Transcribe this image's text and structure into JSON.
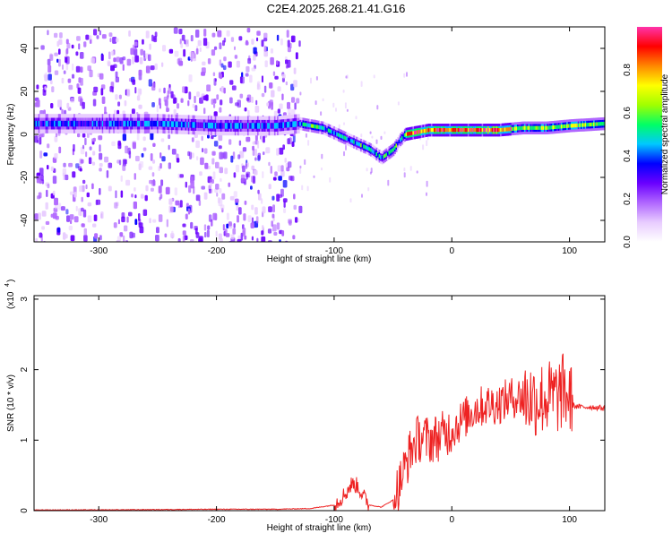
{
  "figure_title": "C2E4.2025.268.21.41.G16",
  "colors": {
    "snr_line": "#ee2222",
    "colormap": [
      "#ffffff",
      "#e8ccff",
      "#b066ff",
      "#6a00ff",
      "#0000ff",
      "#00c8ff",
      "#00ff66",
      "#a0ff00",
      "#ffff00",
      "#ff8800",
      "#ff0000",
      "#ff33aa"
    ]
  },
  "chart_data": [
    {
      "type": "heatmap",
      "title": "",
      "xlabel": "Height of straight line (km)",
      "ylabel": "Frequency (Hz)",
      "xlim": [
        -355,
        130
      ],
      "ylim": [
        -50,
        50
      ],
      "xticks": [
        "-300",
        "-200",
        "-100",
        "0",
        "100"
      ],
      "yticks": [
        "-40",
        "-20",
        "0",
        "20",
        "40"
      ],
      "colorbar": {
        "label": "Normalized spectral amplitude",
        "range": [
          0,
          1
        ],
        "ticks": [
          "0.0",
          "0.2",
          "0.4",
          "0.6",
          "0.8"
        ]
      },
      "ridge": {
        "height_km": [
          -355,
          -300,
          -250,
          -200,
          -150,
          -130,
          -110,
          -90,
          -70,
          -60,
          -50,
          -45,
          -40,
          -30,
          -20,
          0,
          20,
          40,
          60,
          80,
          100,
          130
        ],
        "frequency_hz": [
          5,
          5,
          5,
          4,
          4,
          5,
          3,
          -2,
          -7,
          -11,
          -7,
          -3,
          0,
          1,
          2,
          2,
          2,
          2,
          3,
          3,
          4,
          5
        ]
      }
    },
    {
      "type": "line",
      "title": "",
      "xlabel": "Height of straight line (km)",
      "ylabel": "SNR (10 * v/v)",
      "y_multiplier": "(x10",
      "y_multiplier_exp": "4",
      "xlim": [
        -355,
        130
      ],
      "ylim": [
        0,
        3.05
      ],
      "xticks": [
        "-300",
        "-200",
        "-100",
        "0",
        "100"
      ],
      "yticks": [
        "0",
        "1",
        "2",
        "3"
      ],
      "series": [
        {
          "x": [
            -355,
            -300,
            -250,
            -200,
            -150,
            -120,
            -100,
            -90,
            -85,
            -80,
            -75,
            -70,
            -60,
            -50,
            -45,
            -40,
            -35,
            -30,
            -25,
            -20,
            -10,
            0,
            10,
            20,
            30,
            40,
            50,
            60,
            70,
            80,
            90,
            95,
            100,
            103,
            105,
            110,
            120,
            130
          ],
          "y": [
            0.01,
            0.01,
            0.015,
            0.02,
            0.02,
            0.03,
            0.08,
            0.25,
            0.38,
            0.35,
            0.2,
            0.08,
            0.05,
            0.15,
            0.35,
            0.6,
            0.85,
            1.0,
            1.05,
            1.0,
            1.05,
            1.15,
            1.3,
            1.45,
            1.5,
            1.52,
            1.6,
            1.62,
            1.58,
            1.6,
            1.62,
            1.7,
            1.6,
            1.5,
            1.48,
            1.47,
            1.47,
            1.45
          ]
        }
      ]
    }
  ]
}
